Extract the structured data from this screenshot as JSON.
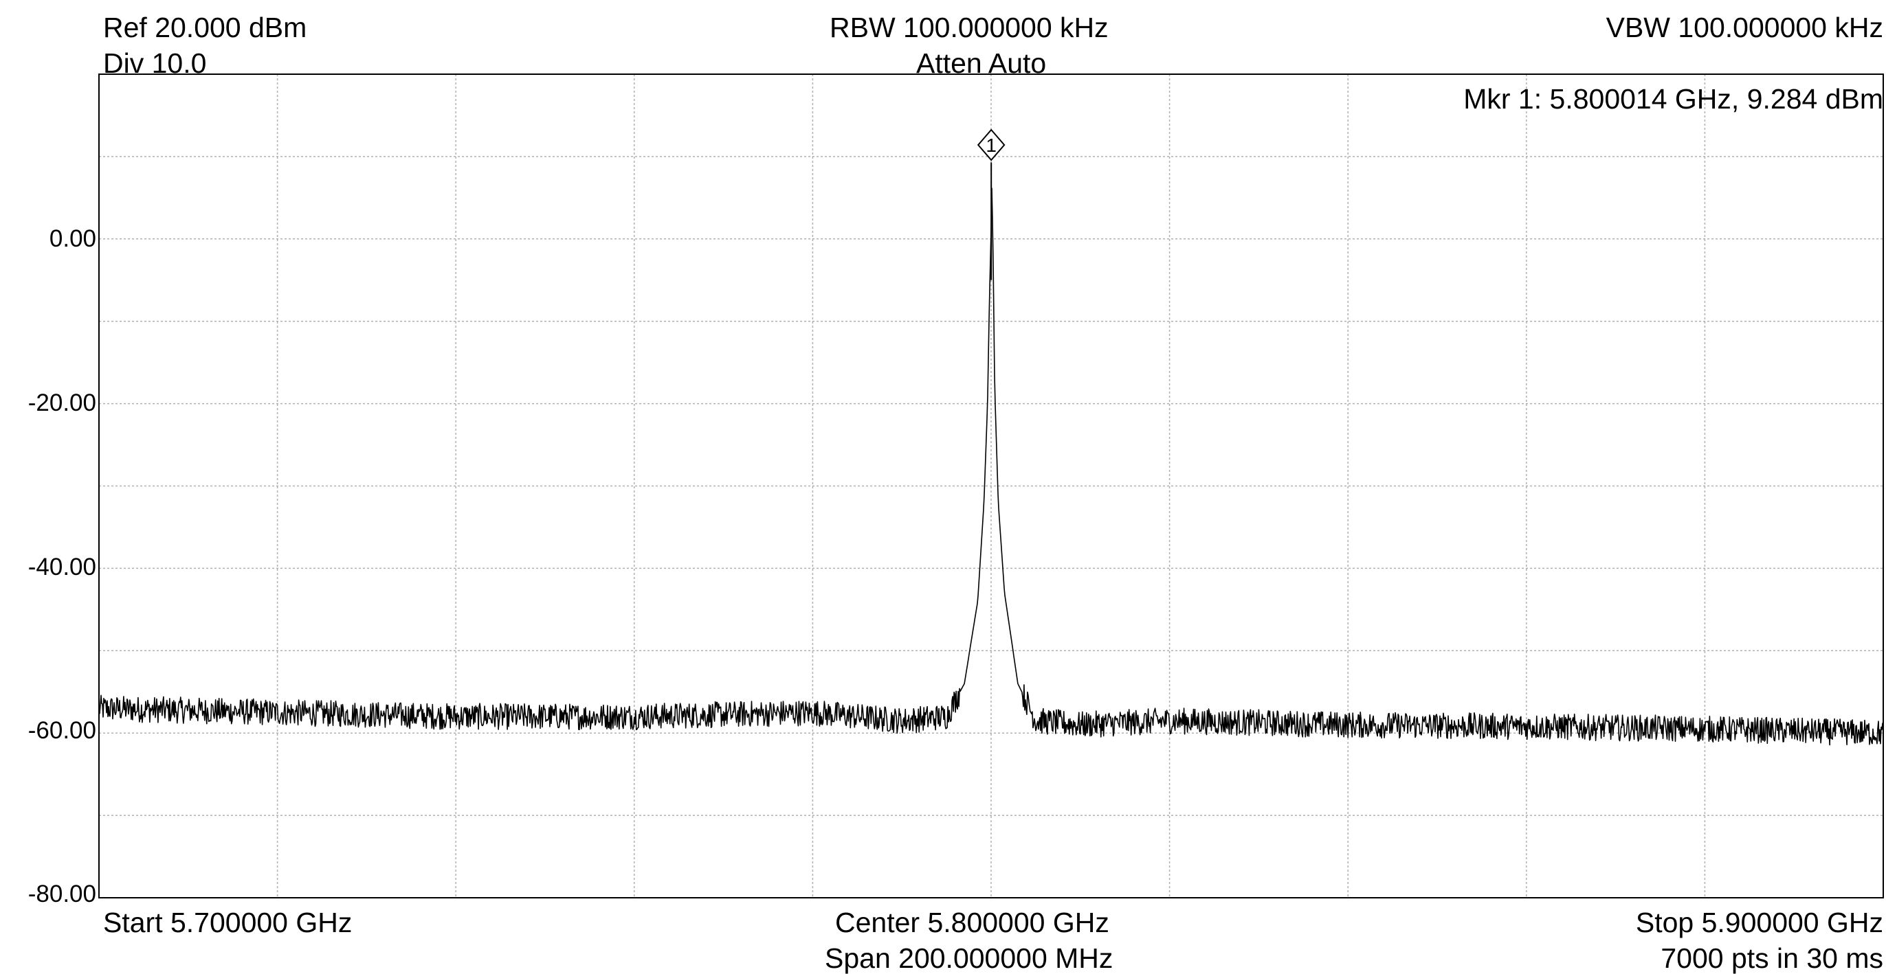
{
  "header": {
    "ref": "Ref 20.000 dBm",
    "div": "Div 10.0",
    "rbw": "RBW 100.000000 kHz",
    "atten": "Atten Auto",
    "vbw": "VBW 100.000000 kHz",
    "marker_readout": "Mkr 1: 5.800014 GHz, 9.284 dBm"
  },
  "footer": {
    "start": "Start 5.700000 GHz",
    "center": "Center 5.800000 GHz",
    "span": "Span 200.000000 MHz",
    "stop": "Stop 5.900000 GHz",
    "points": "7000 pts in 30 ms"
  },
  "colors": {
    "trace": "#000000",
    "grid": "#b0b0b0",
    "frame": "#000000",
    "background": "#ffffff"
  },
  "chart_data": {
    "type": "line",
    "xlim": [
      5.7,
      5.9
    ],
    "ylim": [
      -80,
      20
    ],
    "grid": true,
    "y_ticks": [
      "0.00",
      "-20.00",
      "-40.00",
      "-60.00",
      "-80.00"
    ],
    "y_tick_values": [
      0,
      -20,
      -40,
      -60,
      -80
    ],
    "x_grid_count": 10,
    "y_grid_count": 10,
    "marker": {
      "label": "1",
      "x": 5.800014,
      "y": 9.284
    },
    "series": [
      {
        "x": [
          5.7,
          5.72,
          5.74,
          5.76,
          5.78,
          5.79,
          5.795,
          5.797,
          5.7985,
          5.7992,
          5.7996,
          5.7998,
          5.8,
          5.800014,
          5.8002,
          5.8004,
          5.8008,
          5.8015,
          5.803,
          5.805,
          5.81,
          5.82,
          5.84,
          5.86,
          5.88,
          5.9
        ],
        "values": [
          -57,
          -57.5,
          -58,
          -58,
          -57.5,
          -58.5,
          -58,
          -54,
          -44,
          -32,
          -20,
          -8,
          1,
          9.284,
          0,
          -18,
          -32,
          -43,
          -54,
          -58.5,
          -59,
          -58.5,
          -59,
          -59.2,
          -59.5,
          -60
        ]
      }
    ]
  }
}
